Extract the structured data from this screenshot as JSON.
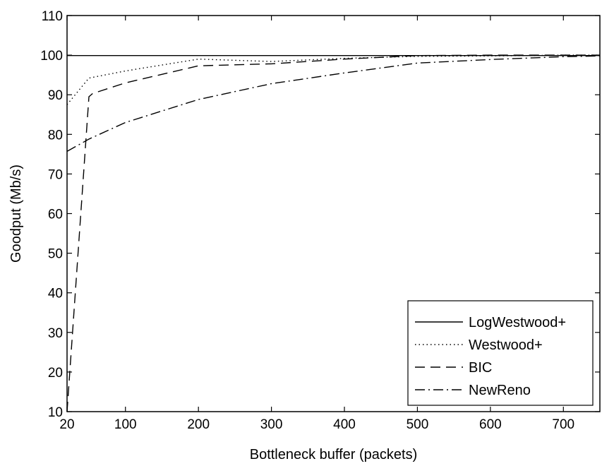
{
  "chart_data": {
    "type": "line",
    "title": "",
    "xlabel": "Bottleneck buffer (packets)",
    "ylabel": "Goodput (Mb/s)",
    "xlim": [
      20,
      750
    ],
    "ylim": [
      10,
      110
    ],
    "xticks": [
      20,
      100,
      200,
      300,
      400,
      500,
      600,
      700
    ],
    "yticks": [
      10,
      20,
      30,
      40,
      50,
      60,
      70,
      80,
      90,
      100,
      110
    ],
    "grid": false,
    "legend_position": "bottom-right",
    "series": [
      {
        "name": "LogWestwood+",
        "style": "solid",
        "x": [
          20,
          50,
          100,
          200,
          300,
          400,
          500,
          600,
          700,
          750
        ],
        "y": [
          99.9,
          99.9,
          99.9,
          99.9,
          99.9,
          99.9,
          99.9,
          99.9,
          99.9,
          99.9
        ]
      },
      {
        "name": "Westwood+",
        "style": "dotted",
        "x": [
          20,
          50,
          100,
          200,
          300,
          400,
          500,
          600,
          700,
          750
        ],
        "y": [
          87.5,
          94.2,
          96.0,
          99.0,
          98.4,
          99.2,
          99.7,
          99.8,
          100.0,
          100.0
        ]
      },
      {
        "name": "BIC",
        "style": "dashed",
        "x": [
          20,
          50,
          55,
          100,
          200,
          300,
          400,
          500,
          600,
          700,
          750
        ],
        "y": [
          10.0,
          89.5,
          90.3,
          93.0,
          97.3,
          97.8,
          99.0,
          99.9,
          100.0,
          100.0,
          100.0
        ]
      },
      {
        "name": "NewReno",
        "style": "dashdot",
        "x": [
          20,
          50,
          100,
          200,
          300,
          400,
          500,
          600,
          700,
          750
        ],
        "y": [
          75.7,
          78.8,
          83.0,
          88.8,
          92.8,
          95.5,
          98.0,
          98.9,
          99.6,
          99.8
        ]
      }
    ]
  }
}
